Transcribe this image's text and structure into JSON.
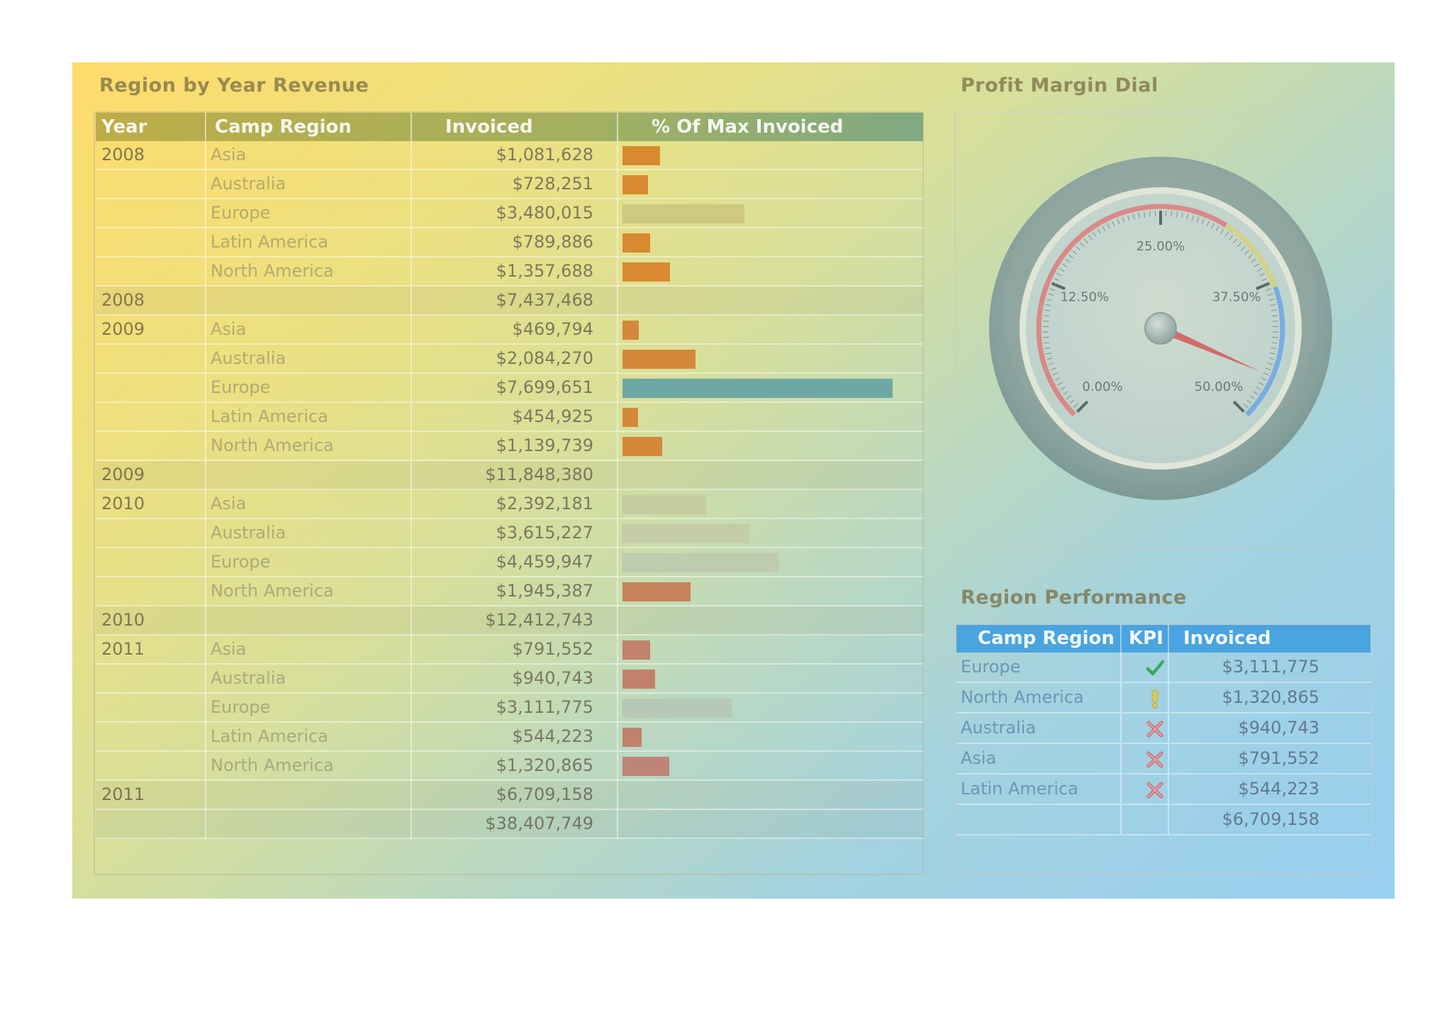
{
  "revenue": {
    "title": "Region by Year Revenue",
    "headers": {
      "year": "Year",
      "region": "Camp Region",
      "invoiced": "Invoiced",
      "pct": "% Of Max Invoiced"
    },
    "rows": [
      {
        "year": "2008",
        "region": "Asia",
        "invoiced": "$1,081,628",
        "pct": 14.0,
        "color": "#d98a30"
      },
      {
        "year": "",
        "region": "Australia",
        "invoiced": "$728,251",
        "pct": 9.5,
        "color": "#d98a30"
      },
      {
        "year": "",
        "region": "Europe",
        "invoiced": "$3,480,015",
        "pct": 45.2,
        "color": "#cec880"
      },
      {
        "year": "",
        "region": "Latin America",
        "invoiced": "$789,886",
        "pct": 10.3,
        "color": "#d98a30"
      },
      {
        "year": "",
        "region": "North America",
        "invoiced": "$1,357,688",
        "pct": 17.6,
        "color": "#d98a30"
      },
      {
        "type": "subtotal",
        "year": "2008",
        "invoiced": "$7,437,468"
      },
      {
        "year": "2009",
        "region": "Asia",
        "invoiced": "$469,794",
        "pct": 6.1,
        "color": "#d4883a"
      },
      {
        "year": "",
        "region": "Australia",
        "invoiced": "$2,084,270",
        "pct": 27.1,
        "color": "#d4883a"
      },
      {
        "year": "",
        "region": "Europe",
        "invoiced": "$7,699,651",
        "pct": 100,
        "color": "#6ea8a4"
      },
      {
        "year": "",
        "region": "Latin America",
        "invoiced": "$454,925",
        "pct": 5.9,
        "color": "#d4883a"
      },
      {
        "year": "",
        "region": "North America",
        "invoiced": "$1,139,739",
        "pct": 14.8,
        "color": "#d4883a"
      },
      {
        "type": "subtotal",
        "year": "2009",
        "invoiced": "$11,848,380"
      },
      {
        "year": "2010",
        "region": "Asia",
        "invoiced": "$2,392,181",
        "pct": 31.1,
        "color": "#c6cca0"
      },
      {
        "year": "",
        "region": "Australia",
        "invoiced": "$3,615,227",
        "pct": 47.0,
        "color": "#c4cca6"
      },
      {
        "year": "",
        "region": "Europe",
        "invoiced": "$4,459,947",
        "pct": 57.9,
        "color": "#bfcbae"
      },
      {
        "year": "",
        "region": "North America",
        "invoiced": "$1,945,387",
        "pct": 25.3,
        "color": "#c8825a"
      },
      {
        "type": "subtotal",
        "year": "2010",
        "invoiced": "$12,412,743"
      },
      {
        "year": "2011",
        "region": "Asia",
        "invoiced": "$791,552",
        "pct": 10.3,
        "color": "#c0826a"
      },
      {
        "year": "",
        "region": "Australia",
        "invoiced": "$940,743",
        "pct": 12.2,
        "color": "#c0826a"
      },
      {
        "year": "",
        "region": "Europe",
        "invoiced": "$3,111,775",
        "pct": 40.4,
        "color": "#b6c8b6"
      },
      {
        "year": "",
        "region": "Latin America",
        "invoiced": "$544,223",
        "pct": 7.1,
        "color": "#c0826a"
      },
      {
        "year": "",
        "region": "North America",
        "invoiced": "$1,320,865",
        "pct": 17.2,
        "color": "#bf8478"
      },
      {
        "type": "subtotal",
        "year": "2011",
        "invoiced": "$6,709,158"
      },
      {
        "type": "grand",
        "year": "",
        "invoiced": "$38,407,749"
      }
    ]
  },
  "dial": {
    "title": "Profit Margin Dial",
    "min": 0,
    "max": 50,
    "value": 46,
    "tick_labels": [
      "0.00%",
      "12.50%",
      "25.00%",
      "37.50%",
      "50.00%"
    ],
    "bands": [
      {
        "from": 0,
        "to": 31,
        "color": "#e07070"
      },
      {
        "from": 31,
        "to": 38,
        "color": "#d8d070"
      },
      {
        "from": 38,
        "to": 50,
        "color": "#5fa0e8"
      }
    ]
  },
  "performance": {
    "title": "Region Performance",
    "headers": {
      "region": "Camp Region",
      "kpi": "KPI",
      "invoiced": "Invoiced"
    },
    "rows": [
      {
        "region": "Europe",
        "kpi": "check-icon",
        "invoiced": "$3,111,775"
      },
      {
        "region": "North America",
        "kpi": "exclamation-icon",
        "invoiced": "$1,320,865"
      },
      {
        "region": "Australia",
        "kpi": "cross-icon",
        "invoiced": "$940,743"
      },
      {
        "region": "Asia",
        "kpi": "cross-icon",
        "invoiced": "$791,552"
      },
      {
        "region": "Latin America",
        "kpi": "cross-icon",
        "invoiced": "$544,223"
      }
    ],
    "total": "$6,709,158"
  }
}
